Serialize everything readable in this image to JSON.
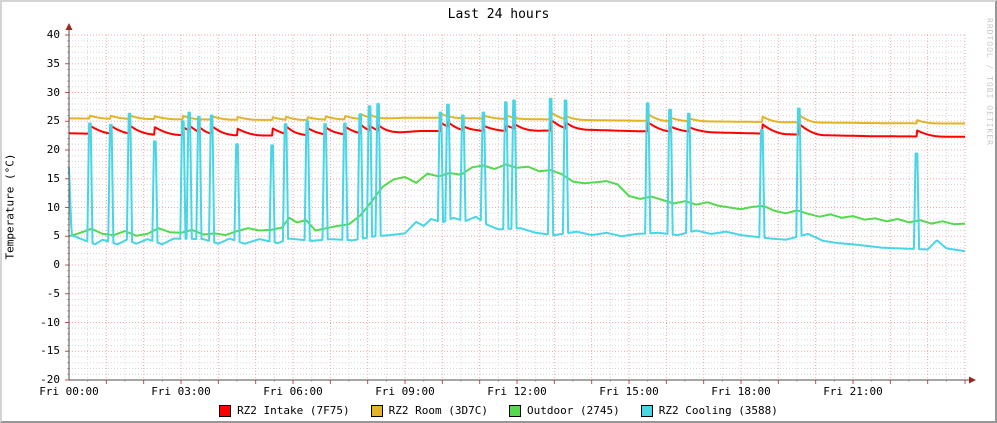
{
  "watermark": "RRDTOOL / TOBI OETIKER",
  "colors": {
    "axis": "#4d4d4d",
    "arrow": "#97281e",
    "grid_minor": "#d8d8d8",
    "grid_major": "#f0a8a8",
    "tick_major": "#cc4a4a",
    "tick_minor": "#eda4a4",
    "background": "#ffffff",
    "legend_box_border": "#000000",
    "watermark_text": "#c9c9c9"
  },
  "chart_data": {
    "type": "line",
    "title": "Last 24 hours",
    "xlabel": "",
    "ylabel": "Temperature (°C)",
    "grid": "dotted, minor gray every 30min / 1°C, major pink every 1h / 5°C",
    "legend_position": "bottom-center",
    "x_axis": {
      "unit": "hours since Fri 00:00",
      "min": 0,
      "max": 24,
      "minor_step_hours": 0.5,
      "major_step_hours": 1,
      "label_step_hours": 3,
      "labels": [
        "Fri 00:00",
        "Fri 03:00",
        "Fri 06:00",
        "Fri 09:00",
        "Fri 12:00",
        "Fri 15:00",
        "Fri 18:00",
        "Fri 21:00"
      ]
    },
    "y_axis": {
      "min": -20,
      "max": 40,
      "minor_step": 1,
      "major_step": 5,
      "ticks": [
        40,
        35,
        30,
        25,
        20,
        15,
        10,
        5,
        0,
        -5,
        -10,
        -15,
        -20
      ]
    },
    "series": [
      {
        "name": "RZ2 Intake (7F75)",
        "color": "#ff0000",
        "model": "baseline-with-decaying-bumps",
        "bump_decay_hours": 0.7,
        "base_keypoints": [
          [
            0,
            22.9
          ],
          [
            3,
            22.6
          ],
          [
            6,
            22.5
          ],
          [
            8,
            22.7
          ],
          [
            9.4,
            23.3
          ],
          [
            11,
            23.3
          ],
          [
            12,
            23.3
          ],
          [
            14,
            23.5
          ],
          [
            15,
            23.3
          ],
          [
            17,
            23.1
          ],
          [
            18.3,
            22.9
          ],
          [
            20,
            22.6
          ],
          [
            21.5,
            22.4
          ],
          [
            24,
            22.3
          ]
        ],
        "bumps": [
          [
            0.56,
            1.4
          ],
          [
            1.12,
            1.4
          ],
          [
            1.62,
            1.5
          ],
          [
            2.3,
            1.3
          ],
          [
            3.05,
            1.4
          ],
          [
            3.22,
            0.9
          ],
          [
            3.48,
            0.9
          ],
          [
            3.82,
            1.4
          ],
          [
            4.5,
            1.2
          ],
          [
            5.44,
            1.3
          ],
          [
            5.8,
            1.4
          ],
          [
            6.38,
            1.3
          ],
          [
            6.86,
            1.3
          ],
          [
            7.39,
            1.4
          ],
          [
            7.8,
            1.6
          ],
          [
            8.05,
            0.9
          ],
          [
            8.28,
            1.0
          ],
          [
            9.95,
            1.5
          ],
          [
            10.15,
            0.8
          ],
          [
            10.55,
            0.7
          ],
          [
            11.1,
            0.9
          ],
          [
            11.7,
            1.0
          ],
          [
            11.92,
            0.8
          ],
          [
            12.9,
            1.9
          ],
          [
            13.3,
            1.1
          ],
          [
            15.5,
            1.6
          ],
          [
            16.1,
            0.9
          ],
          [
            16.6,
            0.8
          ],
          [
            18.56,
            1.7
          ],
          [
            19.55,
            1.9
          ],
          [
            22.7,
            1.1
          ]
        ]
      },
      {
        "name": "RZ2 Room (3D7C)",
        "color": "#e2b426",
        "model": "baseline-with-decaying-bumps",
        "bump_decay_hours": 0.55,
        "base_keypoints": [
          [
            0,
            25.5
          ],
          [
            2,
            25.4
          ],
          [
            4,
            25.3
          ],
          [
            6,
            25.2
          ],
          [
            8,
            25.4
          ],
          [
            9,
            25.6
          ],
          [
            10,
            25.6
          ],
          [
            11,
            25.5
          ],
          [
            12,
            25.4
          ],
          [
            13,
            25.3
          ],
          [
            14.5,
            25.15
          ],
          [
            16,
            25.05
          ],
          [
            17.5,
            24.95
          ],
          [
            19,
            24.85
          ],
          [
            20.5,
            24.75
          ],
          [
            22,
            24.65
          ],
          [
            24,
            24.6
          ]
        ],
        "bumps": [
          [
            0.56,
            0.5
          ],
          [
            1.12,
            0.5
          ],
          [
            1.62,
            0.6
          ],
          [
            2.3,
            0.5
          ],
          [
            3.05,
            0.6
          ],
          [
            3.82,
            0.6
          ],
          [
            4.5,
            0.5
          ],
          [
            5.44,
            0.5
          ],
          [
            5.8,
            0.6
          ],
          [
            6.38,
            0.5
          ],
          [
            6.86,
            0.6
          ],
          [
            7.39,
            0.6
          ],
          [
            7.8,
            0.9
          ],
          [
            8.05,
            0.5
          ],
          [
            9.95,
            0.7
          ],
          [
            11.1,
            0.5
          ],
          [
            11.7,
            0.6
          ],
          [
            12.9,
            1.3
          ],
          [
            13.3,
            0.6
          ],
          [
            15.5,
            1.2
          ],
          [
            16.1,
            0.6
          ],
          [
            16.6,
            0.5
          ],
          [
            18.56,
            1.0
          ],
          [
            19.55,
            1.3
          ],
          [
            22.7,
            0.6
          ]
        ]
      },
      {
        "name": "Outdoor (2745)",
        "color": "#55d94e",
        "model": "keypoints",
        "keypoints": [
          [
            0,
            5.0
          ],
          [
            0.3,
            5.6
          ],
          [
            0.6,
            6.3
          ],
          [
            0.9,
            5.4
          ],
          [
            1.2,
            5.2
          ],
          [
            1.5,
            5.9
          ],
          [
            1.8,
            5.1
          ],
          [
            2.1,
            5.4
          ],
          [
            2.4,
            6.4
          ],
          [
            2.7,
            5.7
          ],
          [
            3.0,
            5.6
          ],
          [
            3.3,
            6.1
          ],
          [
            3.6,
            5.3
          ],
          [
            3.9,
            5.5
          ],
          [
            4.2,
            5.2
          ],
          [
            4.5,
            5.9
          ],
          [
            4.8,
            6.4
          ],
          [
            5.1,
            6.0
          ],
          [
            5.4,
            6.1
          ],
          [
            5.7,
            6.5
          ],
          [
            5.9,
            8.2
          ],
          [
            6.1,
            7.4
          ],
          [
            6.35,
            7.8
          ],
          [
            6.6,
            6.0
          ],
          [
            6.9,
            6.4
          ],
          [
            7.2,
            6.8
          ],
          [
            7.5,
            7.1
          ],
          [
            7.8,
            8.6
          ],
          [
            8.1,
            11.0
          ],
          [
            8.4,
            13.6
          ],
          [
            8.7,
            14.9
          ],
          [
            9.0,
            15.3
          ],
          [
            9.3,
            14.3
          ],
          [
            9.6,
            15.9
          ],
          [
            9.9,
            15.4
          ],
          [
            10.2,
            16.0
          ],
          [
            10.5,
            15.7
          ],
          [
            10.8,
            17.0
          ],
          [
            11.1,
            17.3
          ],
          [
            11.4,
            16.7
          ],
          [
            11.7,
            17.5
          ],
          [
            12.0,
            16.9
          ],
          [
            12.3,
            17.1
          ],
          [
            12.6,
            16.3
          ],
          [
            12.9,
            16.5
          ],
          [
            13.2,
            15.8
          ],
          [
            13.5,
            14.5
          ],
          [
            13.8,
            14.2
          ],
          [
            14.1,
            14.4
          ],
          [
            14.4,
            14.6
          ],
          [
            14.7,
            14.0
          ],
          [
            15.0,
            12.0
          ],
          [
            15.3,
            11.5
          ],
          [
            15.6,
            11.9
          ],
          [
            15.9,
            11.3
          ],
          [
            16.2,
            10.7
          ],
          [
            16.5,
            11.1
          ],
          [
            16.8,
            10.5
          ],
          [
            17.1,
            10.9
          ],
          [
            17.4,
            10.3
          ],
          [
            17.7,
            10.0
          ],
          [
            18.0,
            9.7
          ],
          [
            18.3,
            10.1
          ],
          [
            18.6,
            10.3
          ],
          [
            18.9,
            9.4
          ],
          [
            19.2,
            9.0
          ],
          [
            19.5,
            9.5
          ],
          [
            19.8,
            8.9
          ],
          [
            20.1,
            8.4
          ],
          [
            20.4,
            8.8
          ],
          [
            20.7,
            8.2
          ],
          [
            21.0,
            8.5
          ],
          [
            21.3,
            7.9
          ],
          [
            21.6,
            8.1
          ],
          [
            21.9,
            7.6
          ],
          [
            22.2,
            8.0
          ],
          [
            22.5,
            7.4
          ],
          [
            22.8,
            7.8
          ],
          [
            23.1,
            7.2
          ],
          [
            23.4,
            7.6
          ],
          [
            23.7,
            7.1
          ],
          [
            24,
            7.2
          ]
        ]
      },
      {
        "name": "RZ2 Cooling (3588)",
        "color": "#48d5e5",
        "model": "baseline-with-spikes",
        "spike_half_width_hours": 0.07,
        "base_keypoints": [
          [
            0,
            17
          ],
          [
            0.07,
            5.2
          ],
          [
            0.3,
            4.6
          ],
          [
            0.7,
            3.6
          ],
          [
            0.9,
            4.4
          ],
          [
            1.3,
            3.6
          ],
          [
            1.55,
            4.4
          ],
          [
            1.8,
            3.7
          ],
          [
            2.1,
            4.5
          ],
          [
            2.5,
            3.6
          ],
          [
            2.8,
            4.6
          ],
          [
            3.6,
            4.5
          ],
          [
            4.0,
            3.7
          ],
          [
            4.3,
            4.6
          ],
          [
            4.7,
            3.7
          ],
          [
            5.1,
            4.5
          ],
          [
            5.6,
            3.8
          ],
          [
            5.9,
            4.6
          ],
          [
            6.5,
            4.2
          ],
          [
            7.0,
            4.5
          ],
          [
            7.6,
            4.3
          ],
          [
            8.2,
            5.0
          ],
          [
            8.6,
            5.2
          ],
          [
            9.0,
            5.5
          ],
          [
            9.3,
            7.5
          ],
          [
            9.5,
            6.8
          ],
          [
            9.7,
            8.0
          ],
          [
            10.0,
            7.4
          ],
          [
            10.3,
            8.2
          ],
          [
            10.6,
            7.6
          ],
          [
            10.9,
            8.4
          ],
          [
            11.2,
            7.0
          ],
          [
            11.5,
            6.2
          ],
          [
            12.1,
            6.4
          ],
          [
            12.5,
            5.6
          ],
          [
            13.0,
            5.2
          ],
          [
            13.6,
            5.8
          ],
          [
            14.0,
            5.2
          ],
          [
            14.4,
            5.6
          ],
          [
            14.8,
            5.0
          ],
          [
            15.2,
            5.4
          ],
          [
            15.8,
            5.6
          ],
          [
            16.3,
            5.2
          ],
          [
            16.8,
            6.0
          ],
          [
            17.2,
            5.4
          ],
          [
            17.6,
            5.8
          ],
          [
            18.0,
            5.2
          ],
          [
            18.8,
            4.6
          ],
          [
            19.2,
            4.4
          ],
          [
            19.8,
            5.4
          ],
          [
            20.2,
            4.2
          ],
          [
            20.6,
            3.8
          ],
          [
            21.0,
            3.6
          ],
          [
            21.4,
            3.3
          ],
          [
            21.8,
            3.0
          ],
          [
            22.2,
            2.9
          ],
          [
            23.0,
            2.7
          ],
          [
            23.25,
            4.3
          ],
          [
            23.5,
            2.9
          ],
          [
            24,
            2.4
          ]
        ],
        "spikes": [
          [
            0.56,
            24.6
          ],
          [
            1.12,
            24.4
          ],
          [
            1.62,
            26.3
          ],
          [
            2.3,
            21.5
          ],
          [
            3.05,
            25.0
          ],
          [
            3.22,
            26.5
          ],
          [
            3.48,
            25.8
          ],
          [
            3.82,
            26.0
          ],
          [
            4.5,
            21.0
          ],
          [
            5.44,
            20.8
          ],
          [
            5.8,
            24.5
          ],
          [
            6.38,
            25.0
          ],
          [
            6.86,
            24.5
          ],
          [
            7.39,
            24.6
          ],
          [
            7.8,
            26.2
          ],
          [
            8.05,
            27.6
          ],
          [
            8.28,
            28.0
          ],
          [
            9.95,
            26.5
          ],
          [
            10.15,
            27.9
          ],
          [
            10.55,
            26.0
          ],
          [
            11.1,
            26.5
          ],
          [
            11.7,
            28.3
          ],
          [
            11.92,
            28.6
          ],
          [
            12.9,
            28.9
          ],
          [
            13.3,
            28.6
          ],
          [
            15.5,
            28.1
          ],
          [
            16.1,
            27.0
          ],
          [
            16.6,
            26.3
          ],
          [
            18.56,
            23.5
          ],
          [
            19.55,
            27.2
          ],
          [
            22.7,
            19.4
          ]
        ]
      }
    ]
  }
}
